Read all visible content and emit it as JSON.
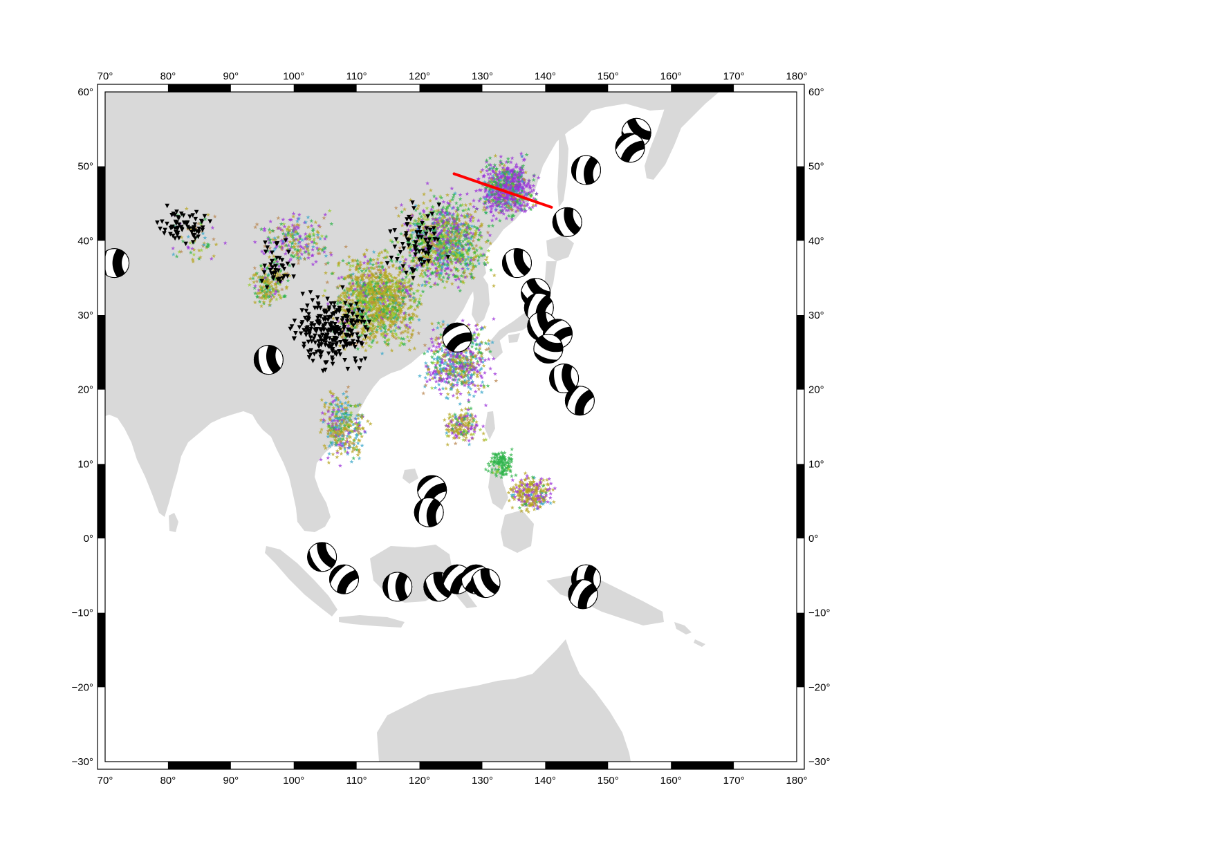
{
  "map": {
    "projection": "equidistant-cylindrical",
    "extent": {
      "lon_min": 70,
      "lon_max": 180,
      "lat_min": -30,
      "lat_max": 60
    },
    "frame_style": "gmt-fancy",
    "colors": {
      "land": "#d9d9d9",
      "water": "#ffffff",
      "frame": "#000000",
      "profile_line": "#ff0000",
      "beachball_fill": "#000000",
      "star_palette": [
        "#9b30d9",
        "#2db34a",
        "#b5a41f",
        "#35a6c9",
        "#b8864f",
        "#9acd32",
        "#c0392b"
      ]
    },
    "lon_ticks": [
      "70°",
      "80°",
      "90°",
      "100°",
      "110°",
      "120°",
      "130°",
      "140°",
      "150°",
      "160°",
      "170°",
      "180°"
    ],
    "lat_ticks": [
      "60°",
      "50°",
      "40°",
      "30°",
      "20°",
      "10°",
      "0°",
      "−10°",
      "−20°",
      "−30°"
    ]
  },
  "profile_line": {
    "start": {
      "lon": 125.5,
      "lat": 49
    },
    "end": {
      "lon": 141,
      "lat": 44.5
    }
  },
  "stations_symbol": "inverted-triangle",
  "events_symbol": "star",
  "beachballs": [
    {
      "lon": 71.5,
      "lat": 37,
      "strike": 90
    },
    {
      "lon": 96,
      "lat": 24,
      "strike": 80
    },
    {
      "lon": 104.5,
      "lat": -2.5,
      "strike": 60
    },
    {
      "lon": 108,
      "lat": -5.5,
      "strike": 130
    },
    {
      "lon": 116.5,
      "lat": -6.5,
      "strike": 90
    },
    {
      "lon": 122,
      "lat": 6.5,
      "strike": 140
    },
    {
      "lon": 121.5,
      "lat": 3.5,
      "strike": 100
    },
    {
      "lon": 123,
      "lat": -6.5,
      "strike": 60
    },
    {
      "lon": 126,
      "lat": -5.5,
      "strike": 130
    },
    {
      "lon": 129,
      "lat": -5.5,
      "strike": 150
    },
    {
      "lon": 130.5,
      "lat": -6,
      "strike": 60
    },
    {
      "lon": 146.5,
      "lat": -5.5,
      "strike": 90
    },
    {
      "lon": 146,
      "lat": -7.5,
      "strike": 120
    },
    {
      "lon": 126,
      "lat": 27,
      "strike": 150
    },
    {
      "lon": 135.5,
      "lat": 37,
      "strike": 70
    },
    {
      "lon": 138.5,
      "lat": 33,
      "strike": 40
    },
    {
      "lon": 139,
      "lat": 31,
      "strike": 110
    },
    {
      "lon": 139.5,
      "lat": 28.5,
      "strike": 60
    },
    {
      "lon": 142,
      "lat": 27.5,
      "strike": 140
    },
    {
      "lon": 140.5,
      "lat": 25.5,
      "strike": 20
    },
    {
      "lon": 143,
      "lat": 21.5,
      "strike": 80
    },
    {
      "lon": 145.5,
      "lat": 18.5,
      "strike": 120
    },
    {
      "lon": 143.5,
      "lat": 42.5,
      "strike": 70
    },
    {
      "lon": 146.5,
      "lat": 49.5,
      "strike": 100
    },
    {
      "lon": 154.5,
      "lat": 54.5,
      "strike": 40
    },
    {
      "lon": 153.5,
      "lat": 52.5,
      "strike": 140
    }
  ]
}
